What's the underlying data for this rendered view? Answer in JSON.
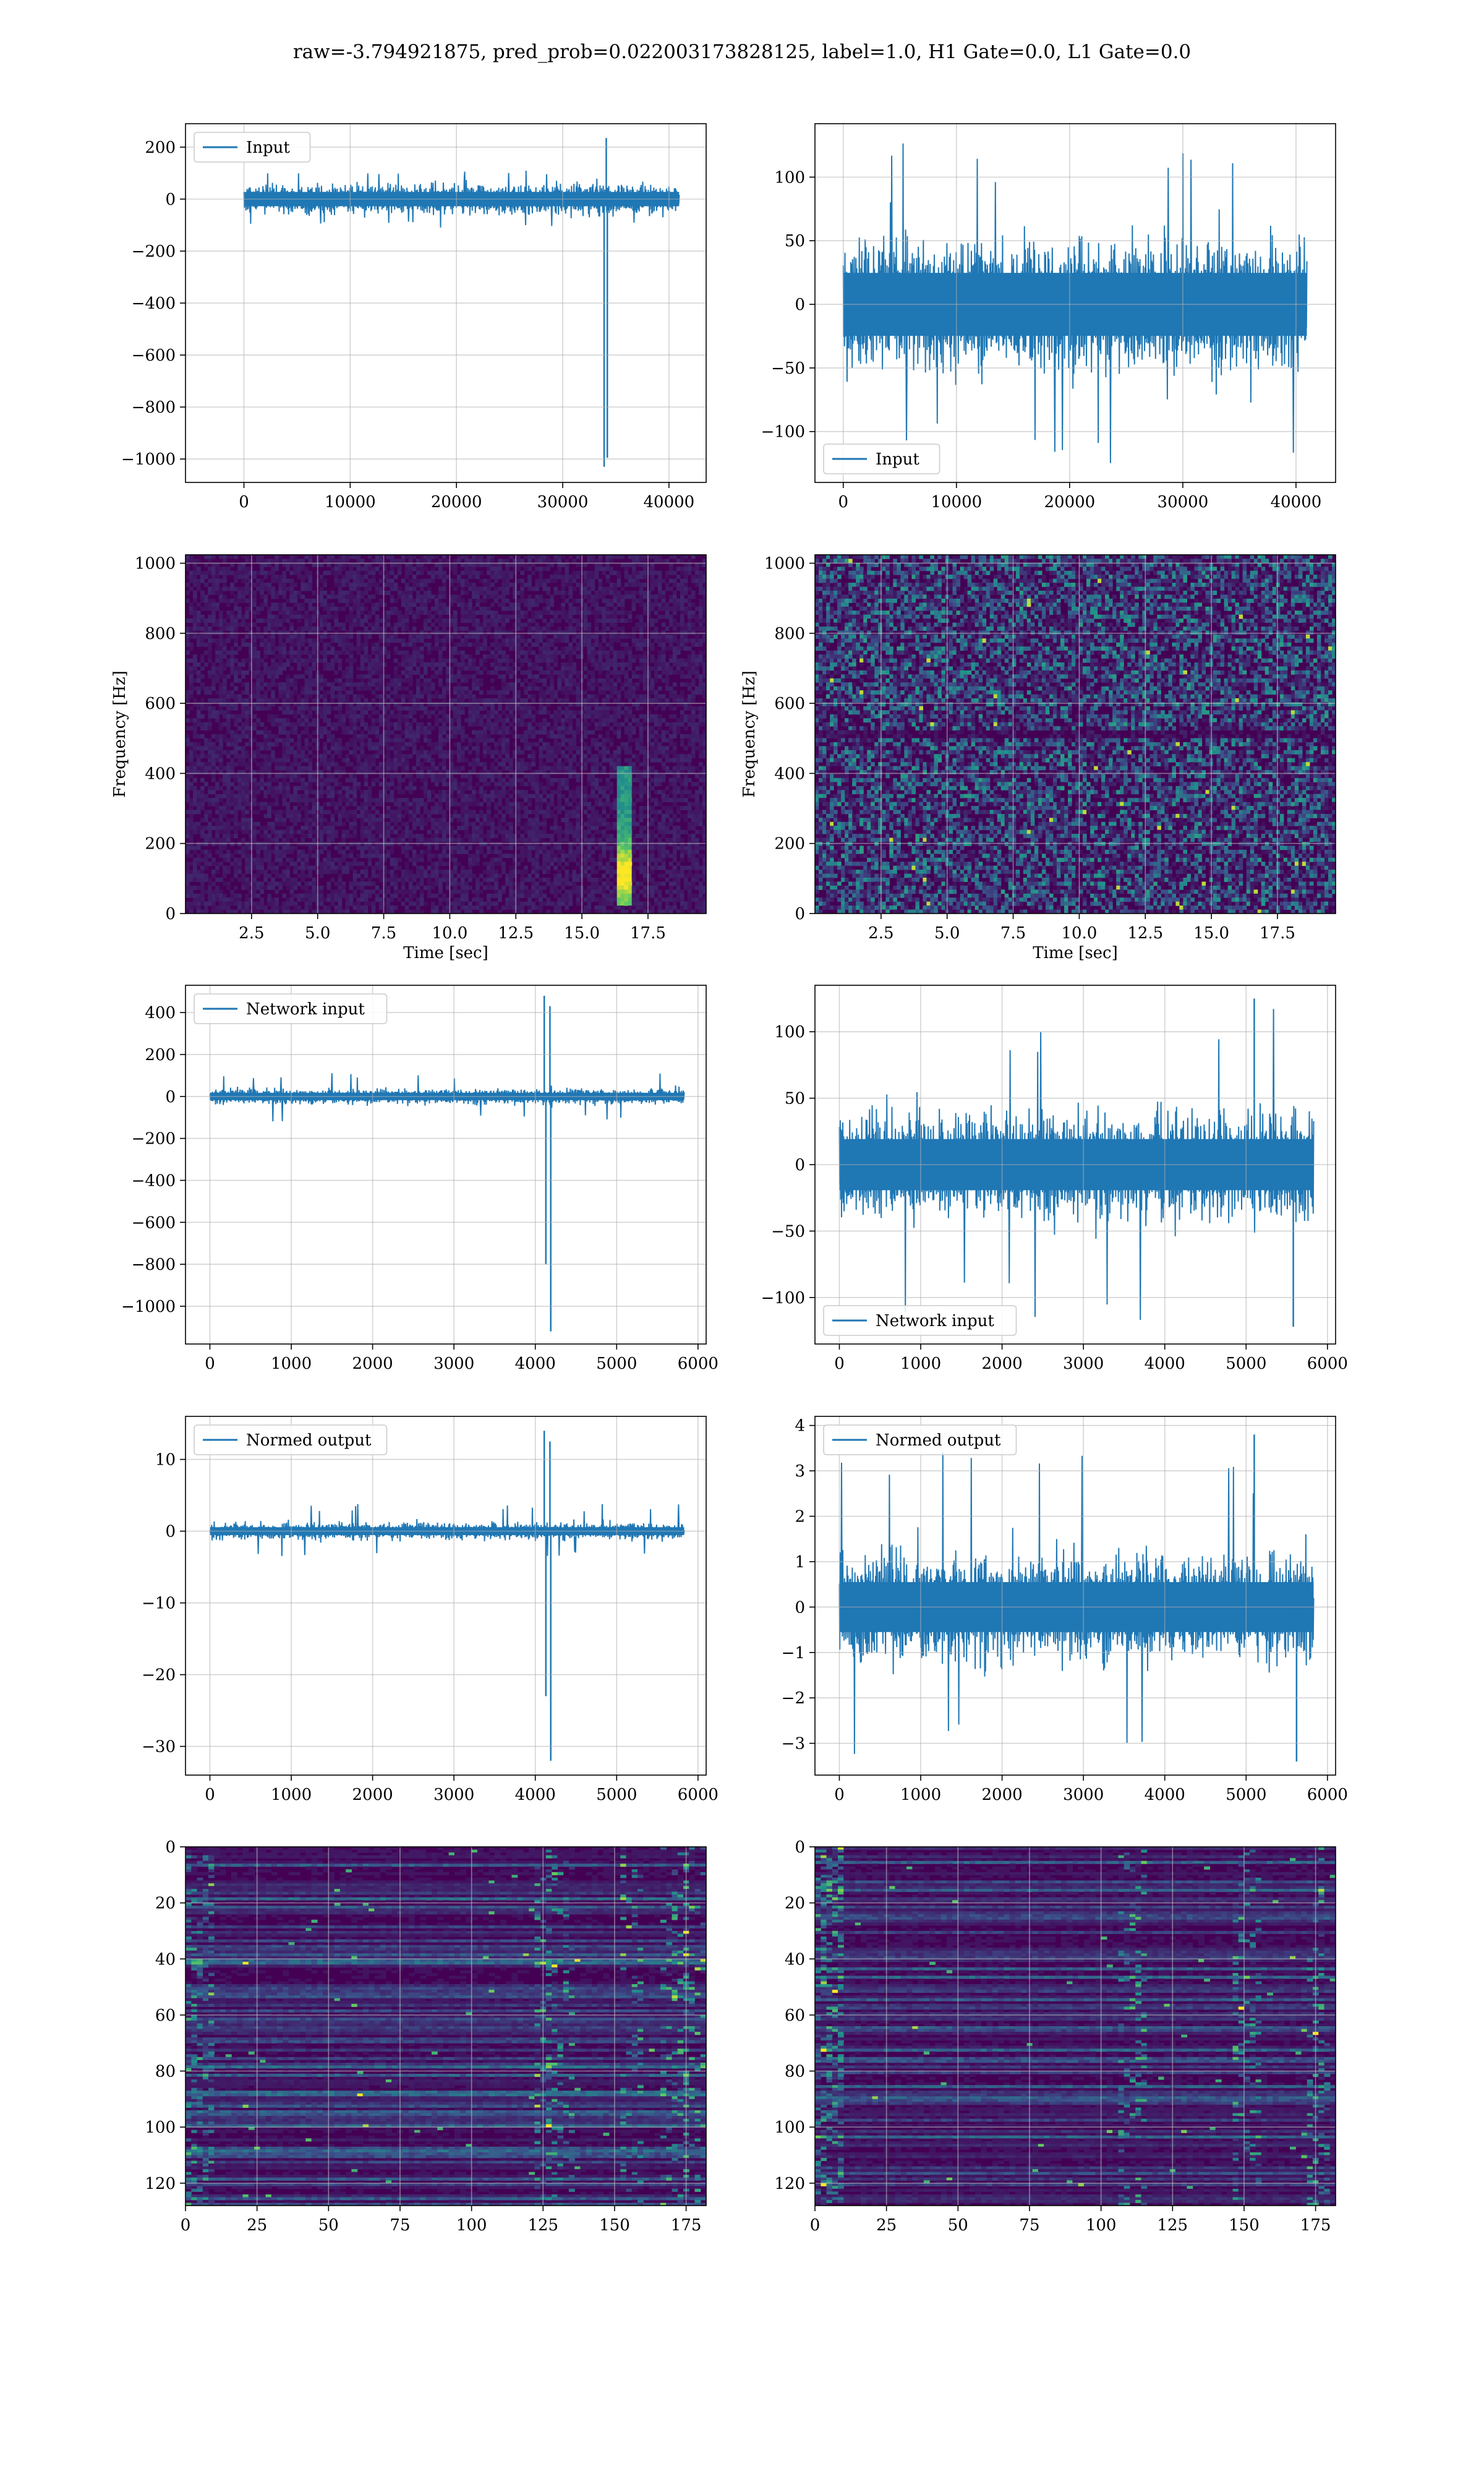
{
  "suptitle": "raw=-3.794921875, pred_prob=0.022003173828125, label=1.0, H1 Gate=0.0, L1 Gate=0.0",
  "colors": {
    "line": "#1f77b4",
    "grid": "#b0b0b0",
    "viridis_dark": "#440154",
    "viridis_mid": "#31688e",
    "viridis_green": "#35b779",
    "viridis_yellow": "#fde725"
  },
  "chart_data": [
    {
      "id": "h1-input",
      "type": "line",
      "title": "",
      "xlabel": "",
      "ylabel": "",
      "xlim": [
        -5500,
        43500
      ],
      "ylim": [
        -1090,
        290
      ],
      "xticks": [
        0,
        10000,
        20000,
        30000,
        40000
      ],
      "xticklabels": [
        "0",
        "10000",
        "20000",
        "30000",
        "40000"
      ],
      "yticks": [
        200,
        0,
        -200,
        -400,
        -600,
        -800,
        -1000
      ],
      "yticklabels": [
        "200",
        "0",
        "−200",
        "−400",
        "−600",
        "−800",
        "−1000"
      ],
      "legend": {
        "label": "Input",
        "position": "upper-left"
      },
      "series": {
        "name": "Input",
        "x_range": [
          0,
          40960
        ],
        "noise_amplitude": 50,
        "noise_peak": 110,
        "spikes": [
          {
            "x": 33900,
            "y": -1030
          },
          {
            "x": 34100,
            "y": 235
          },
          {
            "x": 34200,
            "y": -995
          }
        ]
      }
    },
    {
      "id": "l1-input",
      "type": "line",
      "title": "",
      "xlabel": "",
      "ylabel": "",
      "xlim": [
        -2500,
        43500
      ],
      "ylim": [
        -140,
        142
      ],
      "xticks": [
        0,
        10000,
        20000,
        30000,
        40000
      ],
      "xticklabels": [
        "0",
        "10000",
        "20000",
        "30000",
        "40000"
      ],
      "yticks": [
        100,
        50,
        0,
        -50,
        -100
      ],
      "yticklabels": [
        "100",
        "50",
        "0",
        "−50",
        "−100"
      ],
      "legend": {
        "label": "Input",
        "position": "lower-left"
      },
      "series": {
        "name": "Input",
        "x_range": [
          0,
          40960
        ],
        "noise_amplitude": 45,
        "noise_peak": 130,
        "spikes": []
      }
    },
    {
      "id": "h1-spectrogram",
      "type": "heatmap",
      "title": "",
      "xlabel": "Time [sec]",
      "ylabel": "Frequency [Hz]",
      "xlim": [
        0,
        19.7
      ],
      "ylim": [
        0,
        1024
      ],
      "xticks": [
        2.5,
        5.0,
        7.5,
        10.0,
        12.5,
        15.0,
        17.5
      ],
      "xticklabels": [
        "2.5",
        "5.0",
        "7.5",
        "10.0",
        "12.5",
        "15.0",
        "17.5"
      ],
      "yticks": [
        0,
        200,
        400,
        600,
        800,
        1000
      ],
      "yticklabels": [
        "0",
        "200",
        "400",
        "600",
        "800",
        "1000"
      ],
      "colormap": "viridis",
      "feature": {
        "time": 16.6,
        "freq_range": [
          20,
          420
        ],
        "description_hidden": true
      }
    },
    {
      "id": "l1-spectrogram",
      "type": "heatmap",
      "title": "",
      "xlabel": "Time [sec]",
      "ylabel": "Frequency [Hz]",
      "xlim": [
        0,
        19.7
      ],
      "ylim": [
        0,
        1024
      ],
      "xticks": [
        2.5,
        5.0,
        7.5,
        10.0,
        12.5,
        15.0,
        17.5
      ],
      "xticklabels": [
        "2.5",
        "5.0",
        "7.5",
        "10.0",
        "12.5",
        "15.0",
        "17.5"
      ],
      "yticks": [
        0,
        200,
        400,
        600,
        800,
        1000
      ],
      "yticklabels": [
        "0",
        "200",
        "400",
        "600",
        "800",
        "1000"
      ],
      "colormap": "viridis",
      "feature": {
        "time": null,
        "freq_range": null
      }
    },
    {
      "id": "h1-network-input",
      "type": "line",
      "title": "",
      "xlabel": "",
      "ylabel": "",
      "xlim": [
        -300,
        6100
      ],
      "ylim": [
        -1180,
        530
      ],
      "xticks": [
        0,
        1000,
        2000,
        3000,
        4000,
        5000,
        6000
      ],
      "xticklabels": [
        "0",
        "1000",
        "2000",
        "3000",
        "4000",
        "5000",
        "6000"
      ],
      "yticks": [
        400,
        200,
        0,
        -200,
        -400,
        -600,
        -800,
        -1000
      ],
      "yticklabels": [
        "400",
        "200",
        "0",
        "−200",
        "−400",
        "−600",
        "−800",
        "−1000"
      ],
      "legend": {
        "label": "Network input",
        "position": "upper-left"
      },
      "series": {
        "name": "Network input",
        "x_range": [
          0,
          5830
        ],
        "noise_amplitude": 32,
        "noise_peak": 120,
        "spikes": [
          {
            "x": 4110,
            "y": 480
          },
          {
            "x": 4130,
            "y": -800
          },
          {
            "x": 4180,
            "y": 430
          },
          {
            "x": 4190,
            "y": -1120
          }
        ]
      }
    },
    {
      "id": "l1-network-input",
      "type": "line",
      "title": "",
      "xlabel": "",
      "ylabel": "",
      "xlim": [
        -300,
        6100
      ],
      "ylim": [
        -135,
        135
      ],
      "xticks": [
        0,
        1000,
        2000,
        3000,
        4000,
        5000,
        6000
      ],
      "xticklabels": [
        "0",
        "1000",
        "2000",
        "3000",
        "4000",
        "5000",
        "6000"
      ],
      "yticks": [
        100,
        50,
        0,
        -50,
        -100
      ],
      "yticklabels": [
        "100",
        "50",
        "0",
        "−50",
        "−100"
      ],
      "legend": {
        "label": "Network input",
        "position": "lower-left"
      },
      "series": {
        "name": "Network input",
        "x_range": [
          0,
          5830
        ],
        "noise_amplitude": 35,
        "noise_peak": 118,
        "spikes": [
          {
            "x": 5100,
            "y": 125
          },
          {
            "x": 5580,
            "y": -122
          }
        ]
      }
    },
    {
      "id": "h1-normed-output",
      "type": "line",
      "title": "",
      "xlabel": "",
      "ylabel": "",
      "xlim": [
        -300,
        6100
      ],
      "ylim": [
        -34,
        16
      ],
      "xticks": [
        0,
        1000,
        2000,
        3000,
        4000,
        5000,
        6000
      ],
      "xticklabels": [
        "0",
        "1000",
        "2000",
        "3000",
        "4000",
        "5000",
        "6000"
      ],
      "yticks": [
        10,
        0,
        -10,
        -20,
        -30
      ],
      "yticklabels": [
        "10",
        "0",
        "−10",
        "−20",
        "−30"
      ],
      "legend": {
        "label": "Normed output",
        "position": "upper-left"
      },
      "series": {
        "name": "Normed output",
        "x_range": [
          0,
          5830
        ],
        "noise_amplitude": 1.0,
        "noise_peak": 3.8,
        "spikes": [
          {
            "x": 4110,
            "y": 14
          },
          {
            "x": 4130,
            "y": -23
          },
          {
            "x": 4180,
            "y": 12.5
          },
          {
            "x": 4190,
            "y": -32
          }
        ]
      }
    },
    {
      "id": "l1-normed-output",
      "type": "line",
      "title": "",
      "xlabel": "",
      "ylabel": "",
      "xlim": [
        -300,
        6100
      ],
      "ylim": [
        -3.7,
        4.2
      ],
      "xticks": [
        0,
        1000,
        2000,
        3000,
        4000,
        5000,
        6000
      ],
      "xticklabels": [
        "0",
        "1000",
        "2000",
        "3000",
        "4000",
        "5000",
        "6000"
      ],
      "yticks": [
        4,
        3,
        2,
        1,
        0,
        -1,
        -2,
        -3
      ],
      "yticklabels": [
        "4",
        "3",
        "2",
        "1",
        "0",
        "−1",
        "−2",
        "−3"
      ],
      "legend": {
        "label": "Normed output",
        "position": "upper-left"
      },
      "series": {
        "name": "Normed output",
        "x_range": [
          0,
          5830
        ],
        "noise_amplitude": 1.0,
        "noise_peak": 3.5,
        "spikes": [
          {
            "x": 5100,
            "y": 3.8
          },
          {
            "x": 5620,
            "y": -3.4
          }
        ]
      }
    },
    {
      "id": "h1-feature-map",
      "type": "heatmap",
      "title": "",
      "xlabel": "",
      "ylabel": "",
      "xlim": [
        0,
        182
      ],
      "ylim": [
        128,
        0
      ],
      "xticks": [
        0,
        25,
        50,
        75,
        100,
        125,
        150,
        175
      ],
      "xticklabels": [
        "0",
        "25",
        "50",
        "75",
        "100",
        "125",
        "150",
        "175"
      ],
      "yticks": [
        0,
        20,
        40,
        60,
        80,
        100,
        120
      ],
      "yticklabels": [
        "0",
        "20",
        "40",
        "60",
        "80",
        "100",
        "120"
      ],
      "colormap": "viridis",
      "feature": {
        "bright_columns": [
          125,
          130,
          155,
          170,
          178
        ]
      }
    },
    {
      "id": "l1-feature-map",
      "type": "heatmap",
      "title": "",
      "xlabel": "",
      "ylabel": "",
      "xlim": [
        0,
        182
      ],
      "ylim": [
        128,
        0
      ],
      "xticks": [
        0,
        25,
        50,
        75,
        100,
        125,
        150,
        175
      ],
      "xticklabels": [
        "0",
        "25",
        "50",
        "75",
        "100",
        "125",
        "150",
        "175"
      ],
      "yticks": [
        0,
        20,
        40,
        60,
        80,
        100,
        120
      ],
      "yticklabels": [
        "0",
        "20",
        "40",
        "60",
        "80",
        "100",
        "120"
      ],
      "colormap": "viridis",
      "feature": {
        "bright_columns": [
          5,
          110,
          150,
          175
        ]
      }
    }
  ]
}
